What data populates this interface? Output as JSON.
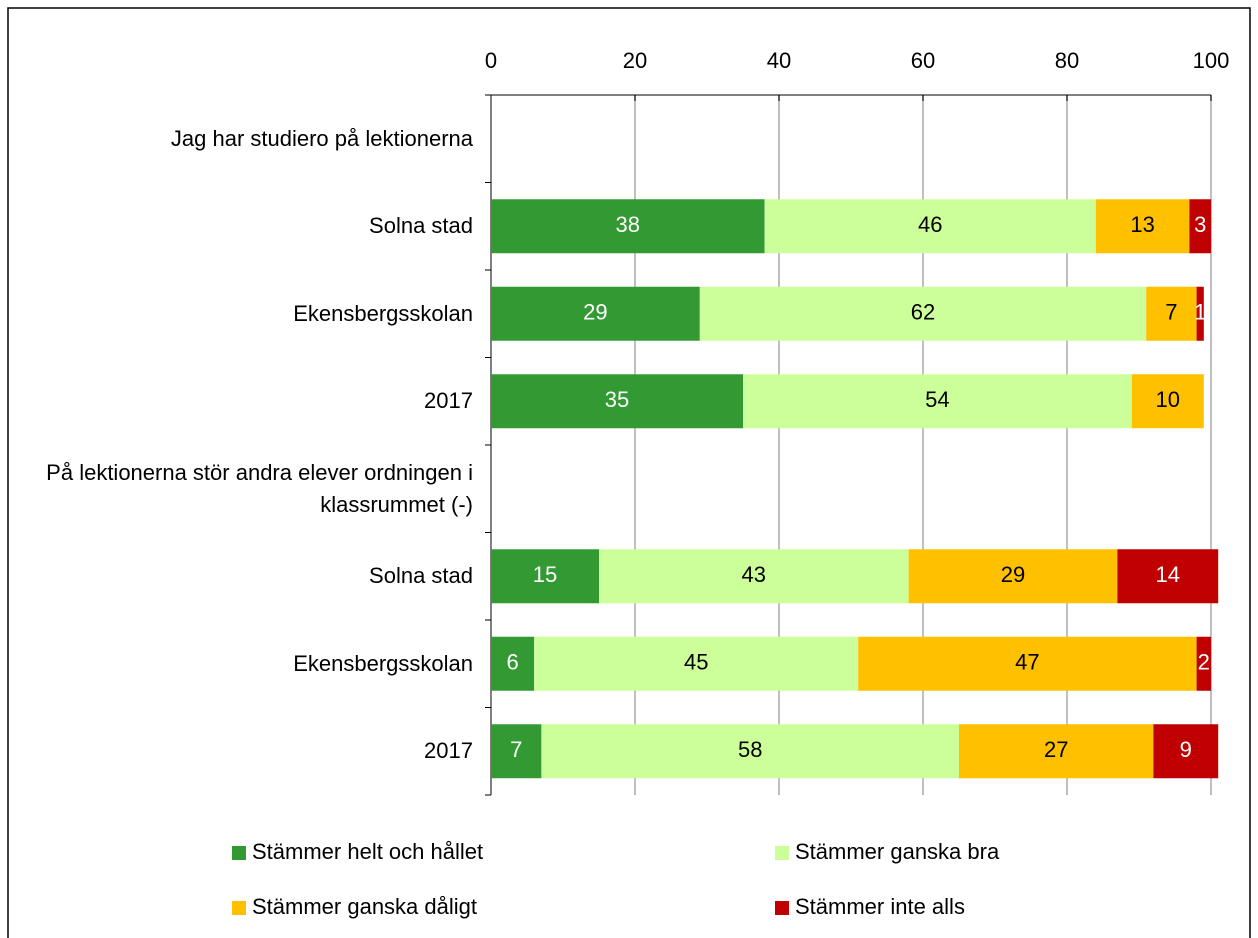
{
  "chart_data": {
    "type": "stacked_barh",
    "categories": [
      "Jag har studiero på lektionerna",
      "Solna stad",
      "Ekensbergsskolan",
      "2017",
      "På lektionerna stör andra elever ordningen i klassrummet (-)",
      "Solna stad",
      "Ekensbergsskolan",
      "2017"
    ],
    "series": [
      {
        "name": "Stämmer helt och hållet",
        "color": "#339933",
        "values": [
          null,
          38,
          29,
          35,
          null,
          15,
          6,
          7
        ]
      },
      {
        "name": "Stämmer ganska bra",
        "color": "#ccff99",
        "values": [
          null,
          46,
          62,
          54,
          null,
          43,
          45,
          58
        ]
      },
      {
        "name": "Stämmer ganska dåligt",
        "color": "#ffc000",
        "values": [
          null,
          13,
          7,
          10,
          null,
          29,
          47,
          27
        ]
      },
      {
        "name": "Stämmer inte alls",
        "color": "#c00000",
        "values": [
          null,
          3,
          1,
          null,
          null,
          14,
          2,
          9
        ]
      }
    ],
    "xlim": [
      0,
      100
    ],
    "xticks": [
      0,
      20,
      40,
      60,
      80,
      100
    ],
    "grid": true
  }
}
